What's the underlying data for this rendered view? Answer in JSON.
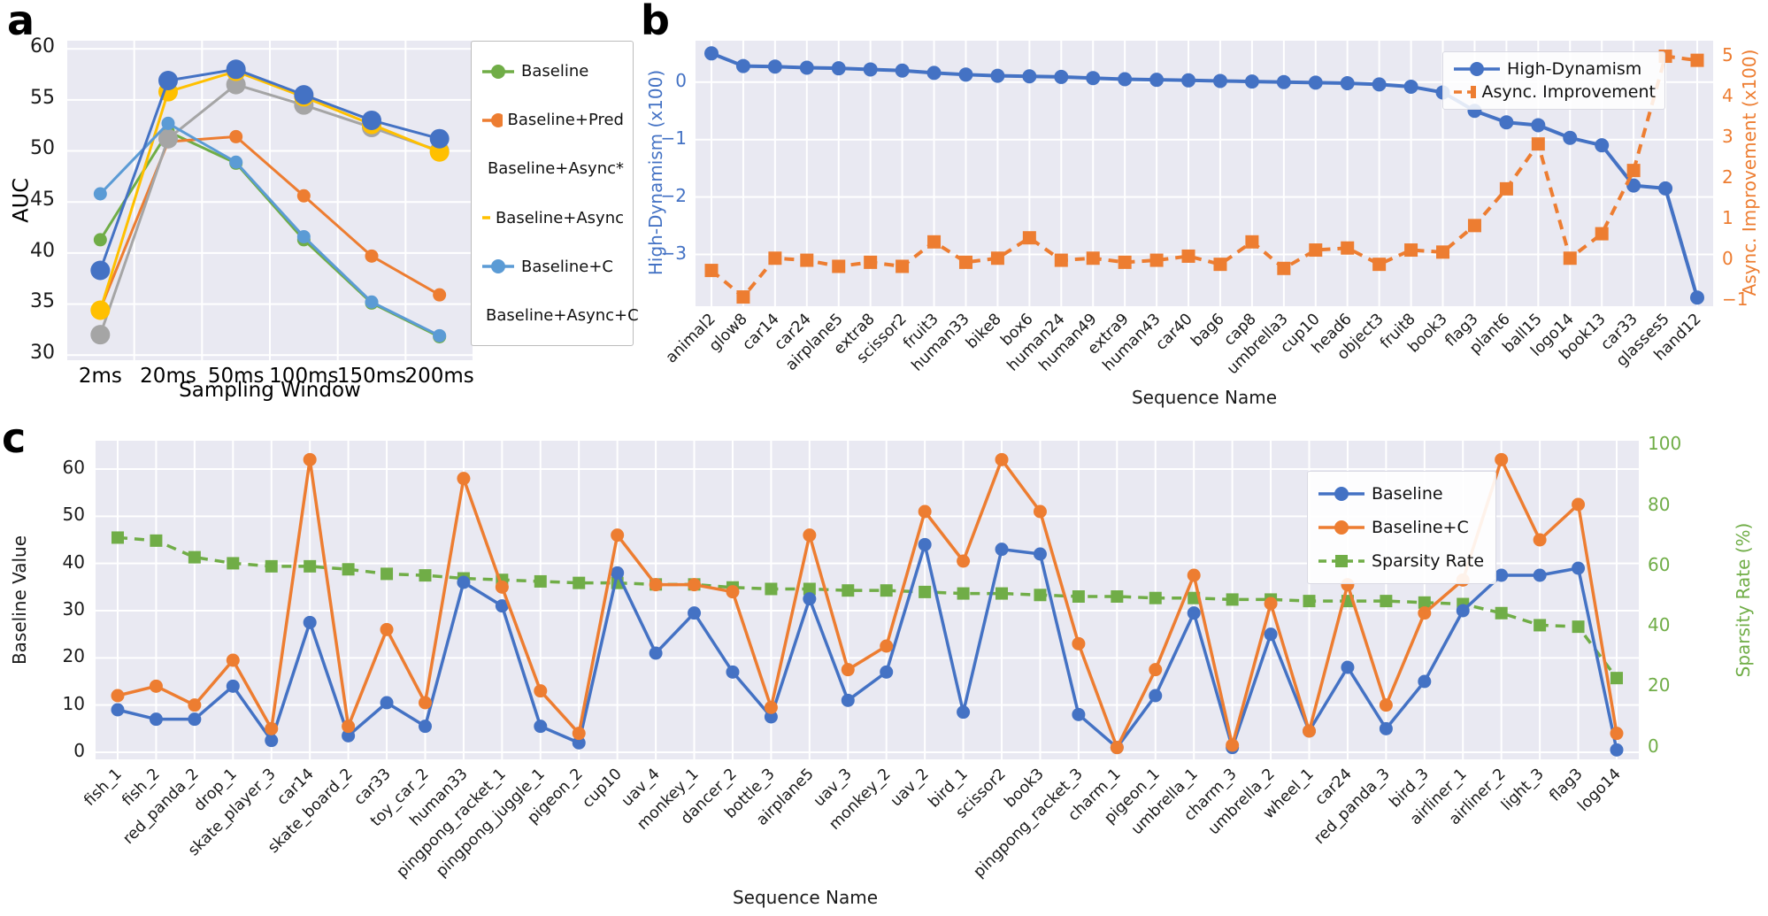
{
  "panels": {
    "a": "a",
    "b": "b",
    "c": "c"
  },
  "colors": {
    "plot_background": "#E9E9F2",
    "grid": "#FFFFFF",
    "green": "#70AD47",
    "orange": "#ED7D31",
    "gray": "#A5A5A5",
    "yellow": "#FFC000",
    "light_blue": "#5B9BD5",
    "blue": "#4472C4"
  },
  "chart_data": [
    {
      "id": "a",
      "type": "line",
      "xlabel": "Sampling Window",
      "ylabel": "AUC",
      "categories": [
        "2ms",
        "20ms",
        "50ms",
        "100ms",
        "150ms",
        "200ms"
      ],
      "yticks": [
        30,
        35,
        40,
        45,
        50,
        55,
        60
      ],
      "ylim": [
        29.5,
        60.8
      ],
      "grid": "on",
      "legend_position": "outside-right",
      "series": [
        {
          "name": "Baseline",
          "color": "#70AD47",
          "marker": "circle",
          "size": "small",
          "line_style": "solid",
          "axis": "left",
          "values": [
            41.3,
            51.9,
            48.8,
            41.3,
            35.1,
            31.8
          ]
        },
        {
          "name": "Baseline+Pred",
          "color": "#ED7D31",
          "marker": "circle",
          "size": "small",
          "line_style": "solid",
          "axis": "left",
          "values": [
            34.5,
            50.9,
            51.4,
            45.6,
            39.7,
            35.9
          ]
        },
        {
          "name": "Baseline+Async*",
          "color": "#A5A5A5",
          "marker": "circle",
          "size": "large",
          "line_style": "solid",
          "axis": "left",
          "values": [
            32.0,
            51.2,
            56.5,
            54.5,
            52.3,
            50.0
          ]
        },
        {
          "name": "Baseline+Async",
          "color": "#FFC000",
          "marker": "circle",
          "size": "large",
          "line_style": "solid",
          "axis": "left",
          "values": [
            34.4,
            55.8,
            57.8,
            55.3,
            52.6,
            49.9
          ]
        },
        {
          "name": "Baseline+C",
          "color": "#5B9BD5",
          "marker": "circle",
          "size": "small",
          "line_style": "solid",
          "axis": "left",
          "values": [
            45.8,
            52.7,
            48.9,
            41.6,
            35.2,
            31.9
          ]
        },
        {
          "name": "Baseline+Async+C",
          "color": "#4472C4",
          "marker": "circle",
          "size": "large",
          "line_style": "solid",
          "axis": "left",
          "values": [
            38.3,
            56.9,
            58.0,
            55.5,
            53.0,
            51.2
          ]
        }
      ]
    },
    {
      "id": "b",
      "type": "line",
      "xlabel": "Sequence Name",
      "ylabel_left": "High-Dynamism (x100)",
      "ylabel_right": "Async. Improvement (x100)",
      "left_axis_color": "#4472C4",
      "right_axis_color": "#ED7D31",
      "categories": [
        "animal2",
        "glow8",
        "car14",
        "car24",
        "airplane5",
        "extra8",
        "scissor2",
        "fruit3",
        "human33",
        "bike8",
        "box6",
        "human24",
        "human49",
        "extra9",
        "human43",
        "car40",
        "bag6",
        "cap8",
        "umbrella3",
        "cup10",
        "head6",
        "object3",
        "fruit8",
        "book3",
        "flag3",
        "plant6",
        "ball15",
        "logo14",
        "book13",
        "car33",
        "glasses5",
        "hand12"
      ],
      "yticks": [
        0,
        -1,
        -2,
        -3
      ],
      "ylim": [
        -3.9,
        0.72
      ],
      "right_yticks": [
        5,
        4,
        3,
        2,
        1,
        0,
        -1
      ],
      "grid": "on",
      "legend_position": "upper-right-inside",
      "series": [
        {
          "name": "High-Dynamism",
          "color": "#4472C4",
          "marker": "circle",
          "size": "small",
          "line_style": "solid",
          "axis": "left",
          "values": [
            0.5,
            0.28,
            0.27,
            0.25,
            0.24,
            0.22,
            0.2,
            0.16,
            0.13,
            0.11,
            0.1,
            0.09,
            0.07,
            0.05,
            0.04,
            0.03,
            0.02,
            0.01,
            0.0,
            -0.01,
            -0.02,
            -0.04,
            -0.08,
            -0.18,
            -0.5,
            -0.7,
            -0.75,
            -0.97,
            -1.1,
            -1.8,
            -1.85,
            -3.75
          ]
        },
        {
          "name": "Async. Improvement",
          "color": "#ED7D31",
          "marker": "square",
          "size": "small",
          "line_style": "dashed",
          "axis": "right",
          "values": [
            -0.25,
            -0.9,
            0.05,
            0.0,
            -0.15,
            -0.05,
            -0.15,
            0.45,
            -0.05,
            0.05,
            0.55,
            0.0,
            0.05,
            -0.05,
            0.0,
            0.1,
            -0.1,
            0.45,
            -0.2,
            0.25,
            0.3,
            -0.1,
            0.25,
            0.2,
            0.85,
            1.75,
            2.85,
            0.05,
            0.65,
            2.2,
            5.0,
            4.9
          ]
        }
      ]
    },
    {
      "id": "c",
      "type": "line",
      "xlabel": "Sequence Name",
      "ylabel_left": "Baseline Value",
      "ylabel_right": "Sparsity Rate (%)",
      "left_axis_color": "#1a1a1a",
      "right_axis_color": "#70AD47",
      "categories": [
        "fish_1",
        "fish_2",
        "red_panda_2",
        "drop_1",
        "skate_player_3",
        "car14",
        "skate_board_2",
        "car33",
        "toy_car_2",
        "human33",
        "pingpong_racket_1",
        "pingpong_juggle_1",
        "pigeon_2",
        "cup10",
        "uav_4",
        "monkey_1",
        "dancer_2",
        "bottle_3",
        "airplane5",
        "uav_3",
        "monkey_2",
        "uav_2",
        "bird_1",
        "scissor2",
        "book3",
        "pingpong_racket_3",
        "charm_1",
        "pigeon_1",
        "umbrella_1",
        "charm_3",
        "umbrella_2",
        "wheel_1",
        "car24",
        "red_panda_3",
        "bird_3",
        "airliner_1",
        "airliner_2",
        "light_3",
        "flag3",
        "logo14"
      ],
      "yticks": [
        0,
        10,
        20,
        30,
        40,
        50,
        60
      ],
      "ylim": [
        -1.5,
        66
      ],
      "right_yticks": [
        100,
        80,
        60,
        40,
        20,
        0
      ],
      "grid": "on",
      "legend_position": "upper-right-inside",
      "series": [
        {
          "name": "Sparsity Rate",
          "color": "#70AD47",
          "marker": "square",
          "size": "small",
          "line_style": "dashed",
          "axis": "right",
          "values": [
            69.5,
            68.5,
            63,
            61,
            60,
            60,
            59,
            57.5,
            57,
            56,
            55.5,
            55,
            54.5,
            54.5,
            54,
            54,
            53,
            52.5,
            52.5,
            52,
            52,
            51.5,
            51,
            51,
            50.5,
            50,
            50,
            49.5,
            49.5,
            49,
            49,
            48.5,
            48.5,
            48.5,
            48,
            47.5,
            44.5,
            40.5,
            40,
            23
          ]
        },
        {
          "name": "Baseline",
          "color": "#4472C4",
          "marker": "circle",
          "size": "small",
          "line_style": "solid",
          "axis": "left",
          "values": [
            9,
            7,
            7,
            14,
            2.5,
            27.5,
            3.5,
            10.5,
            5.5,
            36,
            31,
            5.5,
            2,
            38,
            21,
            29.5,
            17,
            7.5,
            32.5,
            11,
            17,
            44,
            8.5,
            43,
            42,
            8,
            1,
            12,
            29.5,
            1,
            25,
            4.5,
            18,
            5,
            15,
            30,
            37.5,
            37.5,
            39,
            0.5
          ]
        },
        {
          "name": "Baseline+C",
          "color": "#ED7D31",
          "marker": "circle",
          "size": "small",
          "line_style": "solid",
          "axis": "left",
          "values": [
            12,
            14,
            10,
            19.5,
            5,
            62,
            5.5,
            26,
            10.5,
            58,
            35,
            13,
            4,
            46,
            35.5,
            35.5,
            34,
            9.5,
            46,
            17.5,
            22.5,
            51,
            40.5,
            62,
            51,
            23,
            1,
            17.5,
            37.5,
            1.5,
            31.5,
            4.5,
            35.5,
            10,
            29.5,
            36.5,
            62,
            45,
            52.5,
            4
          ]
        }
      ],
      "legend_order": [
        "Baseline",
        "Baseline+C",
        "Sparsity Rate"
      ]
    }
  ]
}
